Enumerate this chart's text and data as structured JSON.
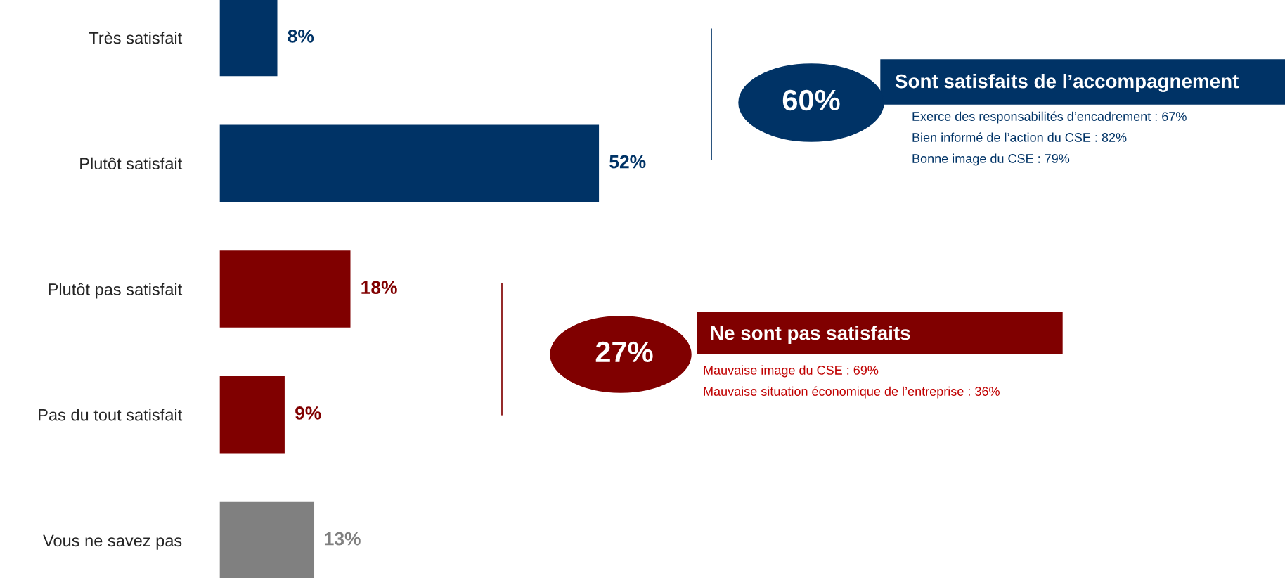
{
  "chart_data": {
    "type": "bar",
    "orientation": "horizontal",
    "categories": [
      "Très satisfait",
      "Plutôt satisfait",
      "Plutôt pas satisfait",
      "Pas du tout satisfait",
      "Vous ne savez pas"
    ],
    "values": [
      8,
      52,
      18,
      9,
      13
    ],
    "colors": [
      "#003366",
      "#003366",
      "#800000",
      "#800000",
      "#808080"
    ],
    "value_labels": [
      "8%",
      "52%",
      "18%",
      "9%",
      "13%"
    ],
    "annotations": [
      "60%",
      "Sont satisfaits de l’accompagnement",
      "Exerce des responsabilités d’encadrement : 67%",
      "Bien informé de l’action du CSE : 82%",
      "Bonne image du CSE : 79%",
      "27%",
      "Ne sont pas satisfaits",
      "Mauvaise image du CSE : 69%",
      "Mauvaise situation économique de l’entreprise : 36%"
    ]
  }
}
